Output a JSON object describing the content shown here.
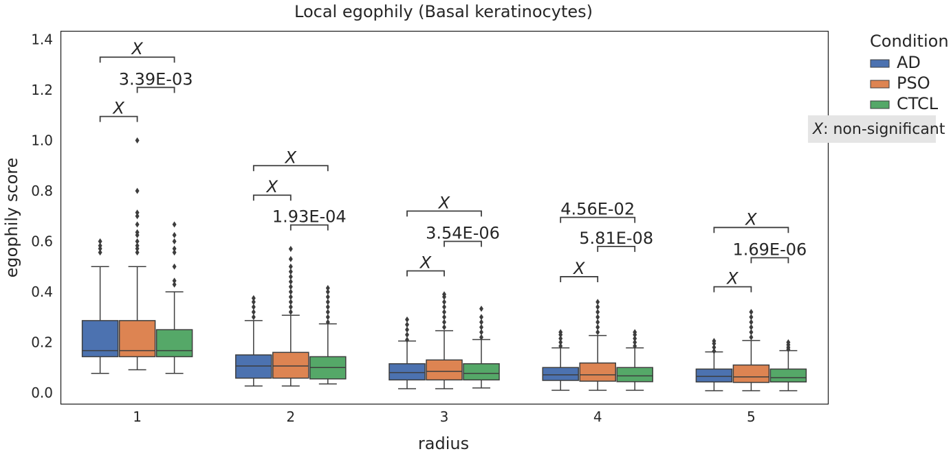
{
  "chart_data": {
    "type": "box",
    "title": "Local egophily (Basal keratinocytes)",
    "xlabel": "radius",
    "ylabel": "egophily score",
    "categories": [
      "1",
      "2",
      "3",
      "4",
      "5"
    ],
    "ylim": [
      -0.04,
      1.43
    ],
    "yticks": [
      "0.0",
      "0.2",
      "0.4",
      "0.6",
      "0.8",
      "1.0",
      "1.2",
      "1.4"
    ],
    "ytick_values": [
      0.0,
      0.2,
      0.4,
      0.6,
      0.8,
      1.0,
      1.2,
      1.4
    ],
    "grid": false,
    "legend": {
      "title": "Condition",
      "placement": "outside-top-right"
    },
    "series": [
      {
        "name": "AD",
        "color": "#4c72b0",
        "boxes": [
          {
            "whislo": 0.077,
            "q1": 0.143,
            "median": 0.167,
            "q3": 0.286,
            "whishi": 0.5,
            "fliers": [
              0.556,
              0.571,
              0.583,
              0.6
            ]
          },
          {
            "whislo": 0.027,
            "q1": 0.058,
            "median": 0.106,
            "q3": 0.15,
            "whishi": 0.286,
            "fliers": [
              0.3,
              0.32,
              0.34,
              0.36,
              0.375
            ]
          },
          {
            "whislo": 0.016,
            "q1": 0.051,
            "median": 0.08,
            "q3": 0.115,
            "whishi": 0.205,
            "fliers": [
              0.21,
              0.23,
              0.25,
              0.27,
              0.29
            ]
          },
          {
            "whislo": 0.01,
            "q1": 0.049,
            "median": 0.071,
            "q3": 0.1,
            "whishi": 0.178,
            "fliers": [
              0.185,
              0.2,
              0.215,
              0.23,
              0.24
            ]
          },
          {
            "whislo": 0.008,
            "q1": 0.043,
            "median": 0.065,
            "q3": 0.094,
            "whishi": 0.162,
            "fliers": [
              0.165,
              0.18,
              0.195,
              0.205
            ]
          }
        ]
      },
      {
        "name": "PSO",
        "color": "#dd8452",
        "boxes": [
          {
            "whislo": 0.091,
            "q1": 0.143,
            "median": 0.167,
            "q3": 0.286,
            "whishi": 0.5,
            "fliers": [
              0.556,
              0.571,
              0.583,
              0.6,
              0.625,
              0.636,
              0.667,
              0.7,
              0.714,
              0.8,
              1.0
            ]
          },
          {
            "whislo": 0.027,
            "q1": 0.058,
            "median": 0.106,
            "q3": 0.16,
            "whishi": 0.307,
            "fliers": [
              0.32,
              0.34,
              0.36,
              0.38,
              0.4,
              0.42,
              0.44,
              0.46,
              0.48,
              0.5,
              0.53,
              0.57
            ]
          },
          {
            "whislo": 0.016,
            "q1": 0.051,
            "median": 0.085,
            "q3": 0.13,
            "whishi": 0.246,
            "fliers": [
              0.26,
              0.28,
              0.3,
              0.32,
              0.34,
              0.36,
              0.38,
              0.39
            ]
          },
          {
            "whislo": 0.01,
            "q1": 0.046,
            "median": 0.071,
            "q3": 0.118,
            "whishi": 0.227,
            "fliers": [
              0.24,
              0.26,
              0.28,
              0.3,
              0.32,
              0.34,
              0.36
            ]
          },
          {
            "whislo": 0.008,
            "q1": 0.041,
            "median": 0.063,
            "q3": 0.11,
            "whishi": 0.207,
            "fliers": [
              0.22,
              0.24,
              0.26,
              0.28,
              0.3,
              0.32
            ]
          }
        ]
      },
      {
        "name": "CTCL",
        "color": "#55a868",
        "boxes": [
          {
            "whislo": 0.077,
            "q1": 0.143,
            "median": 0.167,
            "q3": 0.25,
            "whishi": 0.4,
            "fliers": [
              0.429,
              0.444,
              0.5,
              0.556,
              0.571,
              0.6,
              0.625,
              0.667
            ]
          },
          {
            "whislo": 0.035,
            "q1": 0.055,
            "median": 0.1,
            "q3": 0.143,
            "whishi": 0.273,
            "fliers": [
              0.28,
              0.3,
              0.32,
              0.34,
              0.36,
              0.38,
              0.4,
              0.415
            ]
          },
          {
            "whislo": 0.019,
            "q1": 0.051,
            "median": 0.077,
            "q3": 0.115,
            "whishi": 0.211,
            "fliers": [
              0.22,
              0.24,
              0.26,
              0.28,
              0.3,
              0.333
            ]
          },
          {
            "whislo": 0.01,
            "q1": 0.044,
            "median": 0.067,
            "q3": 0.1,
            "whishi": 0.178,
            "fliers": [
              0.185,
              0.2,
              0.215,
              0.23,
              0.24
            ]
          },
          {
            "whislo": 0.008,
            "q1": 0.043,
            "median": 0.06,
            "q3": 0.094,
            "whishi": 0.167,
            "fliers": [
              0.172,
              0.18,
              0.19,
              0.2
            ]
          }
        ]
      }
    ],
    "annotations": [
      {
        "category": "1",
        "from": "AD",
        "to": "CTCL",
        "y": 1.33,
        "text": "X",
        "italic": true
      },
      {
        "category": "1",
        "from": "PSO",
        "to": "CTCL",
        "y": 1.21,
        "text": "3.39E-03",
        "italic": false
      },
      {
        "category": "1",
        "from": "AD",
        "to": "PSO",
        "y": 1.095,
        "text": "X",
        "italic": true
      },
      {
        "category": "2",
        "from": "AD",
        "to": "CTCL",
        "y": 0.9,
        "text": "X",
        "italic": true
      },
      {
        "category": "2",
        "from": "AD",
        "to": "PSO",
        "y": 0.783,
        "text": "X",
        "italic": true
      },
      {
        "category": "2",
        "from": "PSO",
        "to": "CTCL",
        "y": 0.665,
        "text": "1.93E-04",
        "italic": false
      },
      {
        "category": "3",
        "from": "AD",
        "to": "CTCL",
        "y": 0.72,
        "text": "X",
        "italic": true
      },
      {
        "category": "3",
        "from": "PSO",
        "to": "CTCL",
        "y": 0.6,
        "text": "3.54E-06",
        "italic": false
      },
      {
        "category": "3",
        "from": "AD",
        "to": "PSO",
        "y": 0.483,
        "text": "X",
        "italic": true
      },
      {
        "category": "4",
        "from": "AD",
        "to": "CTCL",
        "y": 0.695,
        "text": "4.56E-02",
        "italic": false
      },
      {
        "category": "4",
        "from": "PSO",
        "to": "CTCL",
        "y": 0.58,
        "text": "5.81E-08",
        "italic": false
      },
      {
        "category": "4",
        "from": "AD",
        "to": "PSO",
        "y": 0.46,
        "text": "X",
        "italic": true
      },
      {
        "category": "5",
        "from": "AD",
        "to": "CTCL",
        "y": 0.655,
        "text": "X",
        "italic": true
      },
      {
        "category": "5",
        "from": "PSO",
        "to": "CTCL",
        "y": 0.535,
        "text": "1.69E-06",
        "italic": false
      },
      {
        "category": "5",
        "from": "AD",
        "to": "PSO",
        "y": 0.42,
        "text": "X",
        "italic": true
      }
    ],
    "note": {
      "symbol": "X",
      "text": ": non-significant"
    }
  }
}
